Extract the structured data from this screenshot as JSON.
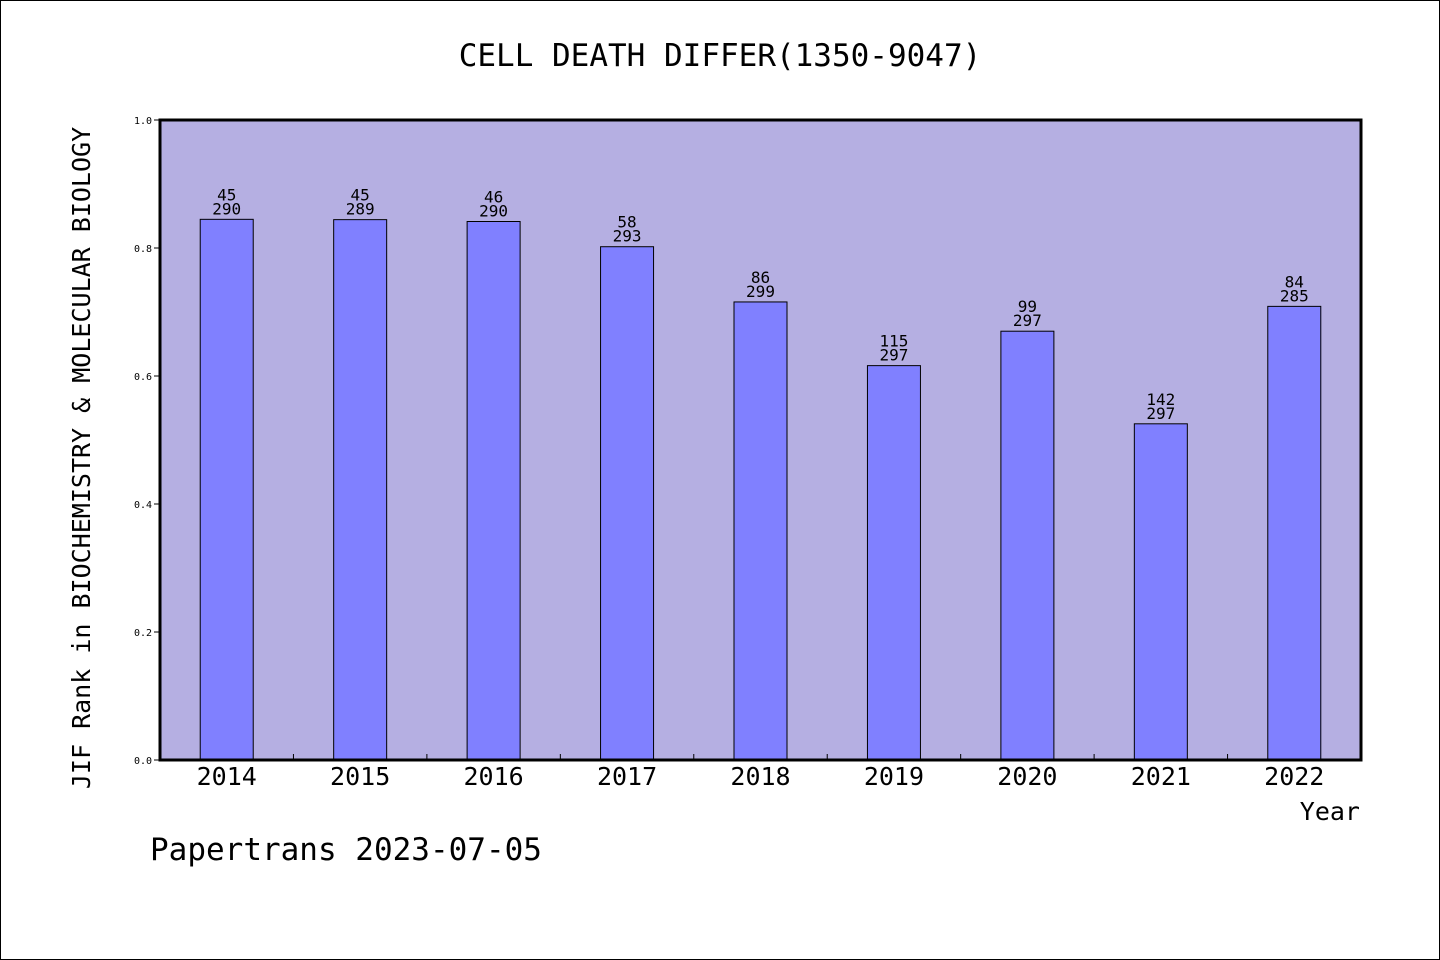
{
  "footer": {
    "text": "Papertrans 2023-07-05"
  },
  "colors": {
    "plot_background": "#b5afe2",
    "bar_fill": "#8080ff",
    "bar_stroke": "#000000",
    "axis": "#000000"
  },
  "chart_data": {
    "type": "bar",
    "title": "CELL DEATH DIFFER(1350-9047)",
    "xlabel": "Year",
    "ylabel": "JIF Rank in BIOCHEMISTRY & MOLECULAR BIOLOGY",
    "ylim": [
      0,
      1.0
    ],
    "yticks": [
      "0.0",
      "0.2",
      "0.4",
      "0.6",
      "0.8",
      "1.0"
    ],
    "grid": false,
    "categories": [
      "2014",
      "2015",
      "2016",
      "2017",
      "2018",
      "2019",
      "2020",
      "2021",
      "2022"
    ],
    "values": [
      0.8448,
      0.8443,
      0.8414,
      0.802,
      0.7157,
      0.6162,
      0.67,
      0.5253,
      0.7088
    ],
    "labels": [
      {
        "rank": "45",
        "total": "290"
      },
      {
        "rank": "45",
        "total": "289"
      },
      {
        "rank": "46",
        "total": "290"
      },
      {
        "rank": "58",
        "total": "293"
      },
      {
        "rank": "86",
        "total": "299"
      },
      {
        "rank": "115",
        "total": "297"
      },
      {
        "rank": "99",
        "total": "297"
      },
      {
        "rank": "142",
        "total": "297"
      },
      {
        "rank": "84",
        "total": "285"
      }
    ]
  }
}
